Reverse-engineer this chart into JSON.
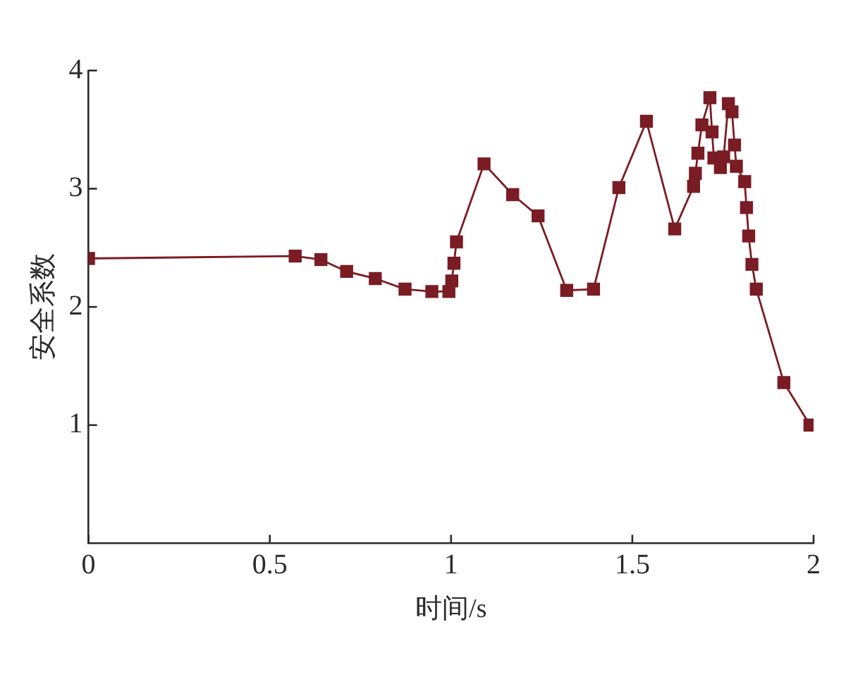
{
  "chart_data": {
    "type": "line",
    "xlabel": "时间/s",
    "ylabel": "安全系数",
    "x": [
      0,
      0.57,
      0.641,
      0.712,
      0.791,
      0.873,
      0.947,
      0.994,
      1.002,
      1.008,
      1.015,
      1.091,
      1.17,
      1.24,
      1.319,
      1.393,
      1.463,
      1.539,
      1.617,
      1.669,
      1.674,
      1.681,
      1.692,
      1.714,
      1.72,
      1.725,
      1.743,
      1.752,
      1.765,
      1.775,
      1.782,
      1.787,
      1.81,
      1.815,
      1.821,
      1.83,
      1.842,
      1.918,
      1.99
    ],
    "series": [
      {
        "color": "#7a1c24",
        "values": [
          2.41,
          2.43,
          2.4,
          2.3,
          2.24,
          2.15,
          2.13,
          2.13,
          2.22,
          2.37,
          2.55,
          3.21,
          2.95,
          2.77,
          2.14,
          2.15,
          3.01,
          3.57,
          2.66,
          3.02,
          3.13,
          3.3,
          3.54,
          3.77,
          3.48,
          3.26,
          3.18,
          3.27,
          3.72,
          3.65,
          3.37,
          3.19,
          3.06,
          2.84,
          2.6,
          2.36,
          2.15,
          1.36,
          1.0
        ]
      }
    ],
    "xlim": [
      0,
      2
    ],
    "ylim": [
      0,
      4
    ],
    "xticks": [
      0,
      0.5,
      1,
      1.5,
      2
    ],
    "yticks": [
      1,
      2,
      3,
      4
    ],
    "grid": false,
    "legend": false,
    "marker": "square",
    "line_style": "solid"
  }
}
